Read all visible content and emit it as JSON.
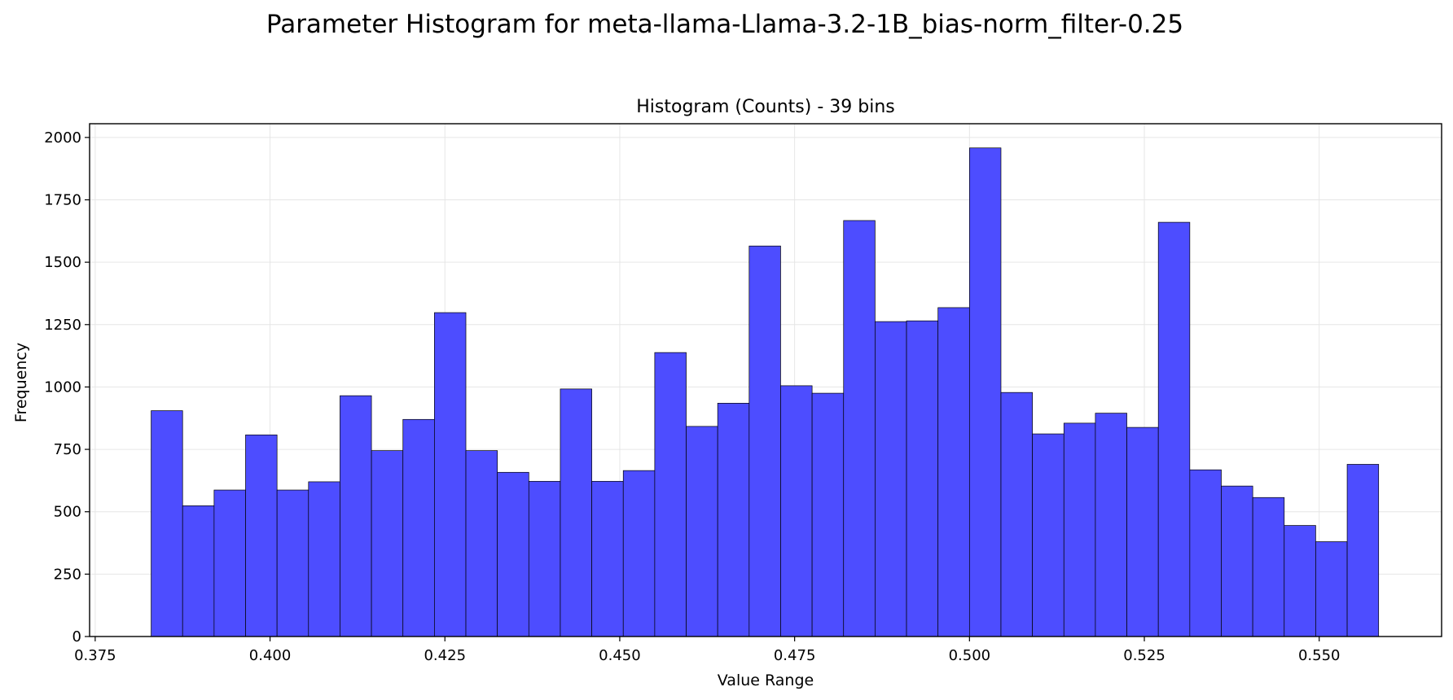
{
  "figure": {
    "suptitle": "Parameter Histogram for meta-llama-Llama-3.2-1B_bias-norm_filter-0.25"
  },
  "chart_data": {
    "type": "bar",
    "title": "Histogram (Counts) - 39 bins",
    "xlabel": "Value Range",
    "ylabel": "Frequency",
    "bin_start": 0.383,
    "bin_end": 0.5585,
    "num_bins": 39,
    "values": [
      905,
      524,
      587,
      808,
      587,
      620,
      965,
      745,
      870,
      1298,
      745,
      658,
      622,
      992,
      622,
      665,
      1138,
      842,
      935,
      1565,
      1005,
      975,
      1667,
      1262,
      1265,
      1318,
      1958,
      978,
      812,
      855,
      895,
      838,
      1660,
      668,
      603,
      557,
      445,
      380,
      690
    ],
    "xlim": [
      0.3742,
      0.5675
    ],
    "ylim": [
      0,
      2055
    ],
    "xticks": [
      0.375,
      0.4,
      0.425,
      0.45,
      0.475,
      0.5,
      0.525,
      0.55
    ],
    "xtick_labels": [
      "0.375",
      "0.400",
      "0.425",
      "0.450",
      "0.475",
      "0.500",
      "0.525",
      "0.550"
    ],
    "yticks": [
      0,
      250,
      500,
      750,
      1000,
      1250,
      1500,
      1750,
      2000
    ],
    "ytick_labels": [
      "0",
      "250",
      "500",
      "750",
      "1000",
      "1250",
      "1500",
      "1750",
      "2000"
    ],
    "grid": true,
    "colors": {
      "bar_fill": "#4d4dff",
      "bar_edge": "#000000",
      "grid": "#e6e6e6",
      "frame": "#000000"
    }
  }
}
